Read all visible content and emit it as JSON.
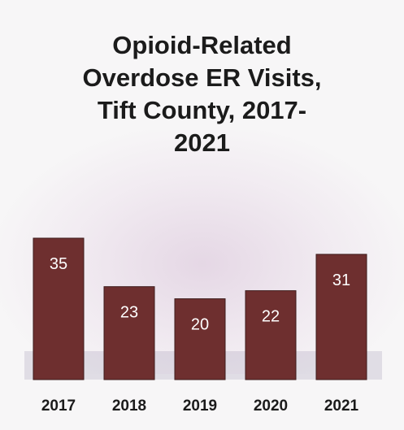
{
  "title_lines": [
    "Opioid-Related",
    "Overdose ER Visits,",
    "Tift County, 2017-",
    "2021"
  ],
  "colors": {
    "bar": "#6e2f2f",
    "bar_edge": "#3e1c1c",
    "label_text": "#ffffff",
    "axis_text": "#1b1b1b"
  },
  "chart_data": {
    "type": "bar",
    "title": "Opioid-Related Overdose ER Visits, Tift County, 2017-2021",
    "categories": [
      "2017",
      "2018",
      "2019",
      "2020",
      "2021"
    ],
    "values": [
      35,
      23,
      20,
      22,
      31
    ],
    "data_labels": true,
    "xlabel": "",
    "ylabel": "",
    "ylim": [
      0,
      35
    ],
    "grid": false,
    "legend": "none"
  }
}
